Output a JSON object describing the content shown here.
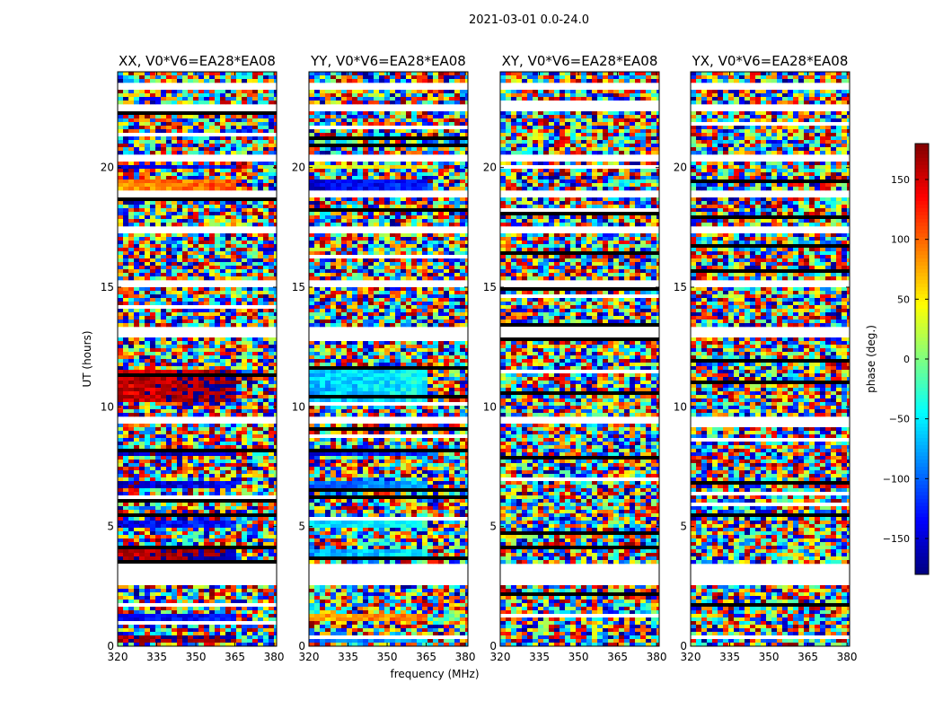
{
  "chart_data": {
    "type": "heatmap",
    "suptitle": "2021-03-01 0.0-24.0",
    "xlabel": "frequency (MHz)",
    "ylabel": "UT (hours)",
    "xlim": [
      320,
      381
    ],
    "ylim": [
      0,
      24
    ],
    "xticks": [
      320,
      335,
      350,
      365,
      380
    ],
    "yticks": [
      0,
      5,
      10,
      15,
      20
    ],
    "panels": [
      {
        "title": "XX, V0*V6=EA28*EA08",
        "polarization": "XX"
      },
      {
        "title": "YY, V0*V6=EA28*EA08",
        "polarization": "YY"
      },
      {
        "title": "XY, V0*V6=EA28*EA08",
        "polarization": "XY"
      },
      {
        "title": "YX, V0*V6=EA28*EA08",
        "polarization": "YX"
      }
    ],
    "colorbar": {
      "label": "phase (deg.)",
      "range": [
        -180,
        180
      ],
      "ticks": [
        150,
        100,
        50,
        0,
        -50,
        -100,
        -150
      ],
      "tick_labels": [
        "150",
        "100",
        "50",
        "0",
        "−50",
        "−100",
        "−150"
      ],
      "colormap": "jet"
    },
    "flagged_ut_ranges": [
      [
        2.6,
        3.5
      ],
      [
        9.3,
        9.6
      ],
      [
        12.9,
        13.3
      ],
      [
        15.0,
        15.3
      ],
      [
        17.3,
        17.6
      ],
      [
        18.7,
        19.0
      ],
      [
        20.2,
        20.5
      ],
      [
        22.3,
        22.6
      ],
      [
        23.2,
        23.5
      ]
    ],
    "coherent_ut_ranges": {
      "XX": [
        [
          0.2,
          0.5,
          160
        ],
        [
          1.1,
          1.4,
          -150
        ],
        [
          3.6,
          4.1,
          160
        ],
        [
          4.9,
          5.2,
          -150
        ],
        [
          6.6,
          6.9,
          -160
        ],
        [
          8.0,
          8.2,
          -170
        ],
        [
          10.2,
          11.6,
          150
        ],
        [
          19.0,
          19.5,
          80
        ],
        [
          19.9,
          20.1,
          -150
        ]
      ],
      "YY": [
        [
          0.2,
          0.5,
          -100
        ],
        [
          1.1,
          1.4,
          70
        ],
        [
          3.6,
          4.1,
          -80
        ],
        [
          4.9,
          5.2,
          -60
        ],
        [
          6.6,
          6.9,
          -100
        ],
        [
          8.0,
          8.2,
          -140
        ],
        [
          10.2,
          11.6,
          -70
        ],
        [
          19.0,
          19.5,
          -150
        ],
        [
          19.9,
          20.1,
          30
        ]
      ]
    }
  }
}
